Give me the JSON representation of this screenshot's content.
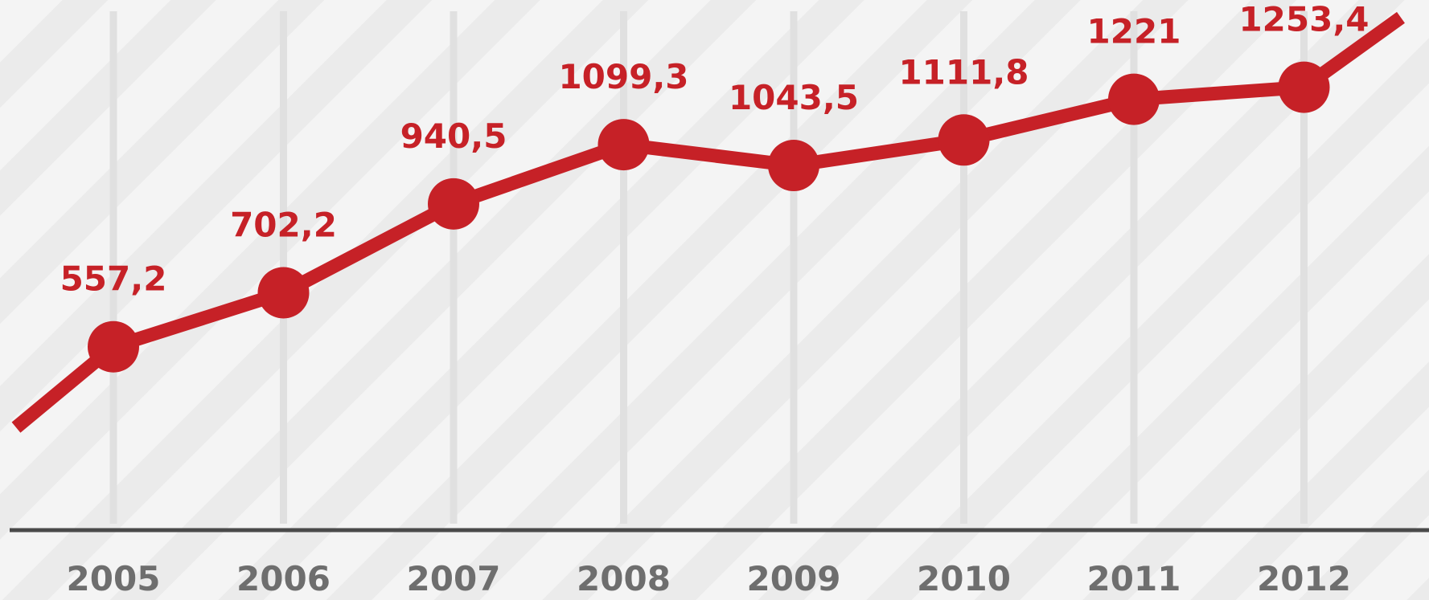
{
  "chart_data": {
    "type": "line",
    "categories": [
      "2005",
      "2006",
      "2007",
      "2008",
      "2009",
      "2010",
      "2011",
      "2012"
    ],
    "values": [
      557.2,
      702.2,
      940.5,
      1099.3,
      1043.5,
      1111.8,
      1221,
      1253.4
    ],
    "data_labels": [
      "557,2",
      "702,2",
      "940,5",
      "1099,3",
      "1043,5",
      "1111,8",
      "1221",
      "1253,4"
    ],
    "title": "",
    "xlabel": "",
    "ylabel": "",
    "grid": "vertical",
    "legend": "none",
    "trend_extends_past_first_and_last_points": true
  },
  "colors": {
    "line": "#c62127",
    "marker": "#c62127",
    "value_label": "#c62127",
    "tick_label": "#6e6e6e",
    "gridline": "#e0e0e0",
    "axis": "#4a4a4a"
  }
}
